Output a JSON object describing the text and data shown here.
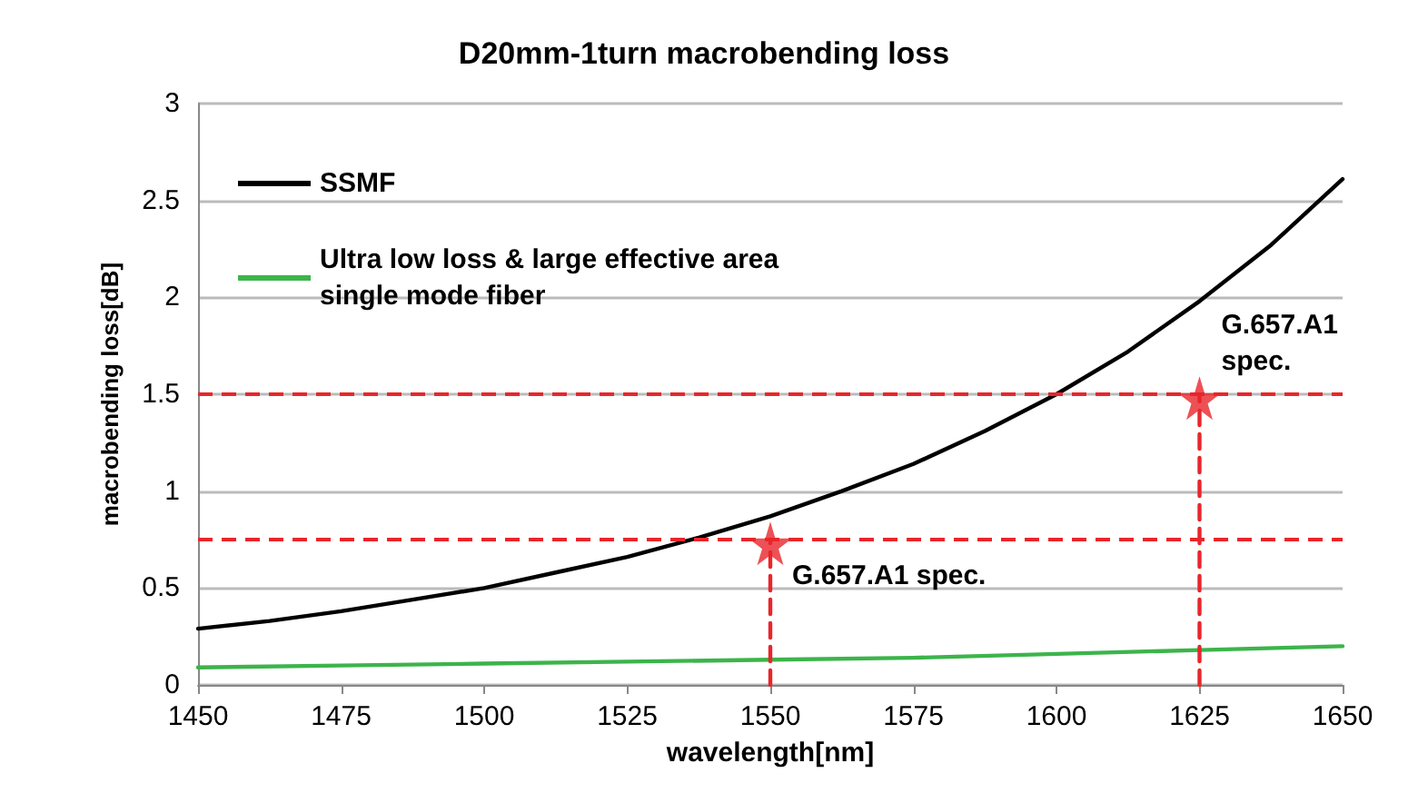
{
  "chart_data": {
    "type": "line",
    "title": "D20mm-1turn macrobending loss",
    "xlabel": "wavelength[nm]",
    "ylabel": "macrobending loss[dB]",
    "xlim": [
      1450,
      1650
    ],
    "xticks": [
      1450,
      1475,
      1500,
      1525,
      1550,
      1575,
      1600,
      1625,
      1650
    ],
    "ylim": [
      0,
      3
    ],
    "yticks": [
      0,
      0.5,
      1,
      1.5,
      2,
      2.5,
      3
    ],
    "grid": "y",
    "legend": "top left",
    "marker": "none",
    "line_style": "solid",
    "series": [
      {
        "name": "SSMF",
        "color": "#000000",
        "x": [
          1450,
          1462.5,
          1475,
          1487.5,
          1500,
          1512.5,
          1525,
          1537.5,
          1550,
          1562.5,
          1575,
          1587.5,
          1600,
          1612.5,
          1625,
          1637.5,
          1650
        ],
        "values": [
          0.29,
          0.33,
          0.38,
          0.44,
          0.5,
          0.58,
          0.66,
          0.76,
          0.87,
          1.0,
          1.14,
          1.31,
          1.5,
          1.72,
          1.98,
          2.27,
          2.61
        ]
      },
      {
        "name": "Ultra low loss & large effective area\nsingle mode fiber",
        "color": "#3cb44b",
        "x": [
          1450,
          1475,
          1500,
          1525,
          1550,
          1575,
          1600,
          1625,
          1650
        ],
        "values": [
          0.09,
          0.1,
          0.11,
          0.12,
          0.13,
          0.14,
          0.16,
          0.18,
          0.2
        ]
      },
      {
        "type": "line",
        "color": "#e8262b",
        "line_style": "dashed",
        "x": [
          1550,
          1550
        ],
        "values": [
          0,
          0.75
        ]
      },
      {
        "type": "line",
        "color": "#e8262b",
        "line_style": "dashed",
        "x": [
          1625,
          1625
        ],
        "values": [
          0,
          1.5
        ]
      },
      {
        "type": "scatter",
        "marker": "star",
        "color": "#e8262b",
        "x": [
          1550,
          1625
        ],
        "values": [
          0.73,
          1.48
        ]
      }
    ],
    "ref_lines": [
      {
        "axis": "y",
        "value": 0.75,
        "color": "#e8262b",
        "line_style": "dashed"
      },
      {
        "axis": "y",
        "value": 1.5,
        "color": "#e8262b",
        "line_style": "dashed"
      }
    ],
    "annotations": [
      {
        "text": "G.657.A1 spec.",
        "x": 1550,
        "y": 0.73
      },
      {
        "text": "G.657.A1\nspec.",
        "x": 1625,
        "y": 1.48
      }
    ]
  }
}
